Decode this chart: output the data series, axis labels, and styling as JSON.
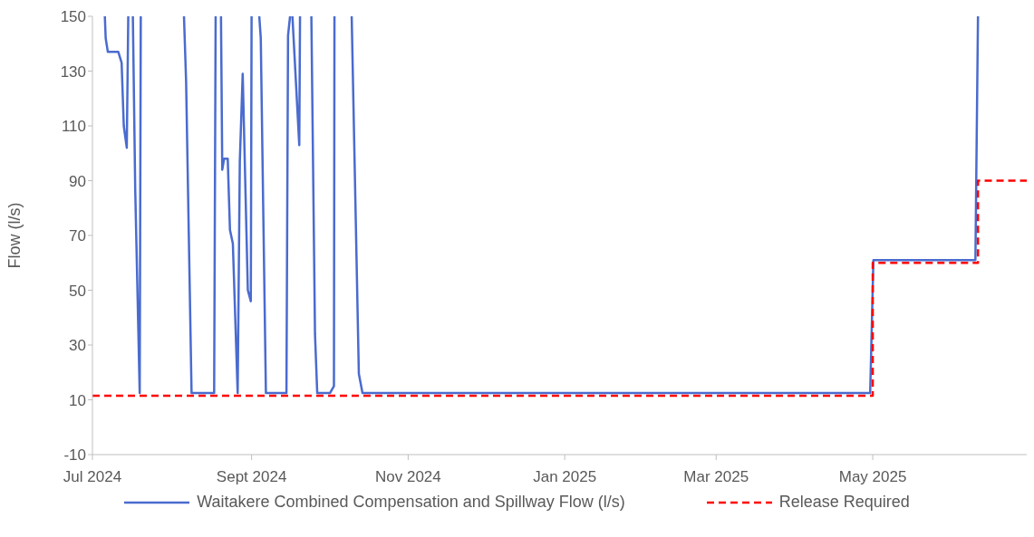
{
  "chart_data": {
    "type": "line",
    "ylabel": "Flow (l/s)",
    "xlim": [
      "2024-07-01",
      "2025-06-30"
    ],
    "ylim": [
      -10,
      150
    ],
    "yticks": [
      -10,
      10,
      30,
      50,
      70,
      90,
      110,
      130,
      150
    ],
    "xticks": [
      {
        "value": "2024-07-01",
        "label": "Jul 2024"
      },
      {
        "value": "2024-09-01",
        "label": "Sept 2024"
      },
      {
        "value": "2024-11-01",
        "label": "Nov 2024"
      },
      {
        "value": "2025-01-01",
        "label": "Jan 2025"
      },
      {
        "value": "2025-03-01",
        "label": "Mar 2025"
      },
      {
        "value": "2025-05-01",
        "label": "May 2025"
      }
    ],
    "grid": false,
    "legend": "bottom",
    "marker": "none",
    "series": [
      {
        "name": "Waitakere Combined Compensation and Spillway Flow (l/s)",
        "type": "line",
        "line_style": "solid",
        "color": "#4a6bcf",
        "x": [
          "2024-07-05T20:00",
          "2024-07-06T04:00",
          "2024-07-07",
          "2024-07-11T02:00",
          "2024-07-12T09:00",
          "2024-07-13T05:00",
          "2024-07-14T09:00",
          "2024-07-14T23:00",
          "2024-07-15T12:00",
          "2024-07-16T18:00",
          "2024-07-17T16:00",
          "2024-07-19T10:00",
          "2024-07-19T20:00",
          "2024-07-25",
          "2024-08-05T16:00",
          "2024-08-06T12:00",
          "2024-08-08T15:00",
          "2024-08-17T10:00",
          "2024-08-18",
          "2024-08-18T12:00",
          "2024-08-20T02:00",
          "2024-08-20T14:00",
          "2024-08-21T07:00",
          "2024-08-22T17:00",
          "2024-08-23T14:00",
          "2024-08-24T17:00",
          "2024-08-26T14:00",
          "2024-08-27T10:00",
          "2024-08-28T13:00",
          "2024-08-30T13:00",
          "2024-08-31T17:00",
          "2024-09-01",
          "2024-09-01T12:00",
          "2024-09-04",
          "2024-09-04T14:00",
          "2024-09-06T14:00",
          "2024-09-14T14:00",
          "2024-09-15T05:00",
          "2024-09-16",
          "2024-09-16T06:00",
          "2024-09-16T22:00",
          "2024-09-19T14:00",
          "2024-09-19T21:00",
          "2024-09-21",
          "2024-09-24T07:00",
          "2024-09-25T17:00",
          "2024-09-26T14:00",
          "2024-10-01T14:00",
          "2024-10-03T02:00",
          "2024-10-03T07:00",
          "2024-10-05",
          "2024-10-10",
          "2024-10-12T19:00",
          "2024-10-14T05:00",
          "2024-11-01",
          "2024-12-01",
          "2025-01-01",
          "2025-02-01",
          "2025-03-01",
          "2025-04-01",
          "2025-04-30",
          "2025-05-01T06:00",
          "2025-05-20",
          "2025-06-10",
          "2025-06-11"
        ],
        "values": [
          150,
          142,
          137,
          137,
          133,
          110,
          102,
          150,
          null,
          150,
          87,
          12.5,
          150,
          null,
          150,
          126,
          12.5,
          12.5,
          150,
          null,
          150,
          94,
          98,
          98,
          72,
          67,
          12.5,
          97,
          129,
          50,
          46,
          150,
          null,
          150,
          142,
          12.5,
          12.5,
          143,
          150,
          null,
          150,
          103,
          150,
          null,
          150,
          34,
          12.5,
          12.5,
          15,
          150,
          null,
          150,
          19.5,
          12.5,
          12.5,
          12.5,
          12.5,
          12.5,
          12.5,
          12.5,
          12.5,
          61,
          61,
          61,
          150
        ]
      },
      {
        "name": "Release Required",
        "type": "step",
        "line_style": "dashed",
        "color": "#ff0000",
        "x": [
          "2024-07-01",
          "2025-05-01",
          "2025-06-11",
          "2025-06-30"
        ],
        "values": [
          11.5,
          60,
          90,
          90
        ]
      }
    ]
  }
}
